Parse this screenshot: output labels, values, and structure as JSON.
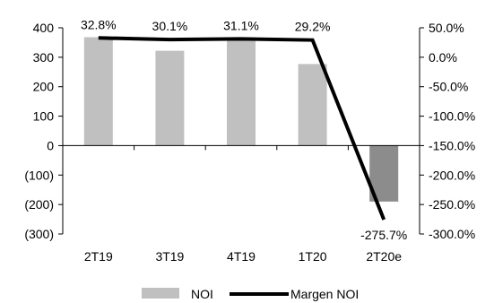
{
  "chart_data": {
    "type": "bar",
    "categories": [
      "2T19",
      "3T19",
      "4T19",
      "1T20",
      "2T20e"
    ],
    "series": [
      {
        "name": "NOI",
        "type": "bar",
        "axis": "left",
        "values": [
          368,
          322,
          361,
          277,
          -190
        ],
        "color": "#c0c0c0",
        "negative_color": "#8c8c8c"
      },
      {
        "name": "Margen NOI",
        "type": "line",
        "axis": "right",
        "values": [
          32.8,
          30.1,
          31.1,
          29.2,
          -275.7
        ],
        "labels": [
          "32.8%",
          "30.1%",
          "31.1%",
          "29.2%",
          "-275.7%"
        ],
        "color": "#000000"
      }
    ],
    "left_axis": {
      "ylim": [
        -300,
        400
      ],
      "ticks": [
        400,
        300,
        200,
        100,
        0,
        -100,
        -200,
        -300
      ],
      "tick_labels": [
        "400",
        "300",
        "200",
        "100",
        "0",
        "(100)",
        "(200)",
        "(300)"
      ]
    },
    "right_axis": {
      "ylim": [
        -300,
        50
      ],
      "ticks": [
        50,
        0,
        -50,
        -100,
        -150,
        -200,
        -250,
        -300
      ],
      "tick_labels": [
        "50.0%",
        "0.0%",
        "-50.0%",
        "-100.0%",
        "-150.0%",
        "-200.0%",
        "-250.0%",
        "-300.0%"
      ]
    },
    "title": "",
    "xlabel": "",
    "ylabel": "",
    "grid": false,
    "legend": {
      "position": "bottom",
      "entries": [
        "NOI",
        "Margen NOI"
      ]
    }
  }
}
